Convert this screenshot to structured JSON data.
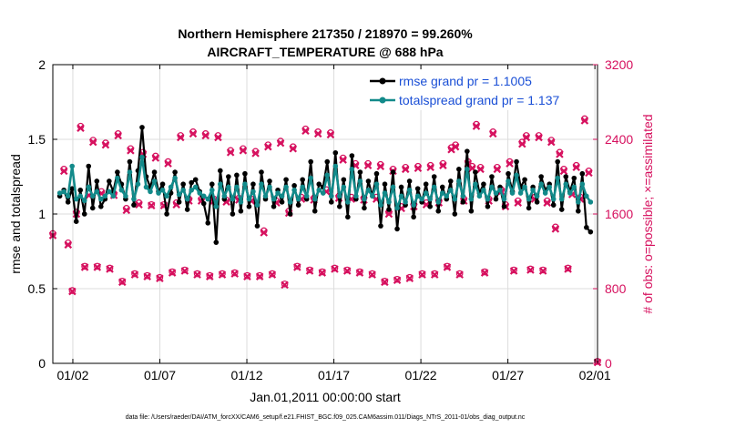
{
  "chart_data": {
    "type": "line",
    "title": "Northern Hemisphere 217350 / 218970 = 99.260%",
    "subtitle": "AIRCRAFT_TEMPERATURE @ 688 hPa",
    "xlabel": "Jan.01,2011 00:00:00 start",
    "ylabel_left": "rmse and totalspread",
    "ylabel_right": "# of obs: o=possible; ×=assimilated",
    "footer": "data file: /Users/raeder/DAI/ATM_forcXX/CAM6_setup/f.e21.FHIST_BGC.f09_025.CAM6assim.011/Diags_NTrS_2011-01/obs_diag_output.nc",
    "xlim": [
      0.6,
      31.9
    ],
    "ylim_left": [
      0,
      2
    ],
    "ylim_right": [
      0,
      3200
    ],
    "x_ticks": [
      1.75,
      6.75,
      11.75,
      16.75,
      21.75,
      26.75,
      31.75
    ],
    "x_tick_labels": [
      "01/02",
      "01/07",
      "01/12",
      "01/17",
      "01/22",
      "01/27",
      "02/01"
    ],
    "y_ticks_left": [
      0,
      0.5,
      1,
      1.5,
      2
    ],
    "y_tick_labels_left": [
      "0",
      "0.5",
      "1",
      "1.5",
      "2"
    ],
    "y_ticks_right": [
      0,
      800,
      1600,
      2400,
      3200
    ],
    "y_tick_labels_right": [
      "0",
      "800",
      "1600",
      "2400",
      "3200"
    ],
    "grid": true,
    "legend_position": "top-right",
    "colors": {
      "rmse": "#000000",
      "spread": "#128a8a",
      "obs": "#d6105e",
      "legend_text": "#1a4fd6"
    },
    "series": [
      {
        "name": "rmse grand pr = 1.1005",
        "axis": "left",
        "values": [
          1.12,
          1.16,
          1.08,
          1.17,
          0.95,
          1.16,
          1.0,
          1.32,
          1.04,
          1.22,
          1.05,
          1.1,
          1.22,
          1.15,
          1.28,
          1.2,
          1.1,
          1.35,
          1.06,
          1.29,
          1.58,
          1.25,
          1.18,
          1.28,
          1.15,
          1.2,
          1.0,
          1.14,
          1.28,
          1.08,
          1.2,
          1.03,
          1.21,
          1.23,
          1.15,
          1.07,
          0.94,
          1.2,
          0.81,
          1.29,
          1.1,
          1.25,
          1.0,
          1.26,
          1.02,
          1.27,
          1.05,
          1.2,
          0.92,
          1.28,
          1.1,
          1.22,
          1.05,
          1.16,
          1.08,
          1.23,
          1.0,
          1.19,
          1.06,
          1.23,
          1.1,
          1.35,
          1.02,
          1.2,
          1.18,
          1.35,
          1.08,
          1.41,
          1.05,
          1.23,
          0.98,
          1.39,
          1.1,
          1.28,
          1.04,
          1.22,
          1.12,
          1.27,
          0.92,
          1.2,
          1.03,
          1.28,
          0.9,
          1.18,
          1.06,
          1.22,
          0.98,
          1.17,
          1.08,
          1.2,
          1.05,
          1.25,
          1.02,
          1.18,
          1.1,
          1.22,
          1.0,
          1.3,
          1.08,
          1.42,
          1.02,
          1.28,
          1.14,
          1.2,
          1.05,
          1.25,
          1.1,
          1.18,
          1.05,
          1.27,
          1.15,
          1.35,
          1.18,
          1.23,
          1.04,
          1.18,
          1.08,
          1.25,
          1.16,
          1.2,
          1.06,
          1.35,
          1.03,
          1.25,
          1.15,
          1.24,
          1.02,
          1.27,
          0.91,
          0.88
        ]
      },
      {
        "name": "totalspread grand pr = 1.137",
        "axis": "left",
        "values": [
          1.14,
          1.15,
          1.12,
          1.32,
          1.1,
          1.12,
          1.09,
          1.18,
          1.12,
          1.15,
          1.1,
          1.12,
          1.15,
          1.12,
          1.24,
          1.16,
          1.12,
          1.28,
          1.1,
          1.2,
          1.38,
          1.18,
          1.15,
          1.22,
          1.14,
          1.16,
          1.12,
          1.18,
          1.24,
          1.13,
          1.16,
          1.1,
          1.16,
          1.18,
          1.14,
          1.12,
          1.1,
          1.16,
          1.05,
          1.2,
          1.12,
          1.18,
          1.1,
          1.18,
          1.08,
          1.2,
          1.1,
          1.15,
          1.06,
          1.2,
          1.12,
          1.18,
          1.1,
          1.14,
          1.12,
          1.18,
          1.08,
          1.16,
          1.1,
          1.18,
          1.12,
          1.24,
          1.1,
          1.16,
          1.14,
          1.26,
          1.12,
          1.32,
          1.12,
          1.18,
          1.08,
          1.3,
          1.12,
          1.22,
          1.1,
          1.16,
          1.12,
          1.2,
          1.06,
          1.14,
          1.08,
          1.18,
          1.04,
          1.12,
          1.08,
          1.16,
          1.06,
          1.12,
          1.1,
          1.14,
          1.1,
          1.18,
          1.08,
          1.14,
          1.12,
          1.16,
          1.1,
          1.22,
          1.12,
          1.3,
          1.1,
          1.2,
          1.12,
          1.16,
          1.1,
          1.18,
          1.14,
          1.16,
          1.1,
          1.22,
          1.14,
          1.26,
          1.14,
          1.18,
          1.1,
          1.16,
          1.12,
          1.2,
          1.14,
          1.18,
          1.1,
          1.24,
          1.1,
          1.2,
          1.14,
          1.18,
          1.08,
          1.2,
          1.12,
          1.08
        ]
      },
      {
        "name": "obs possible",
        "axis": "right",
        "values": [
          1390,
          2080,
          1290,
          780,
          1620,
          2540,
          1040,
          1820,
          2390,
          1040,
          1840,
          2360,
          1020,
          1820,
          2460,
          880,
          1660,
          2300,
          960,
          1720,
          2260,
          940,
          1700,
          2220,
          920,
          1700,
          2160,
          980,
          1720,
          2440,
          1000,
          1760,
          2480,
          960,
          1760,
          2460,
          940,
          1760,
          2440,
          960,
          1750,
          2280,
          970,
          1770,
          2300,
          940,
          1760,
          2270,
          940,
          1420,
          2340,
          960,
          1740,
          2380,
          850,
          1630,
          2320,
          1040,
          1780,
          2510,
          1000,
          1770,
          2480,
          980,
          1860,
          2470,
          1020,
          1790,
          2200,
          1000,
          1780,
          2140,
          980,
          1770,
          2140,
          960,
          1780,
          2130,
          880,
          1620,
          2080,
          900,
          1680,
          2100,
          920,
          1700,
          2110,
          960,
          1720,
          2120,
          960,
          1740,
          2140,
          1040,
          2310,
          2340,
          960,
          1760,
          2160,
          2110,
          2560,
          2100,
          980,
          1760,
          2480,
          2100,
          1860,
          1700,
          2160,
          1000,
          1740,
          2370,
          2440,
          1010,
          1780,
          2440,
          1000,
          1740,
          2390,
          1460,
          2260,
          2080,
          1020,
          1830,
          2120,
          1780,
          2620,
          2060,
          20
        ]
      },
      {
        "name": "obs assimilated",
        "axis": "right",
        "values": [
          1370,
          2060,
          1270,
          770,
          1600,
          2520,
          1030,
          1800,
          2370,
          1030,
          1820,
          2340,
          1010,
          1800,
          2440,
          870,
          1640,
          2280,
          950,
          1700,
          2240,
          930,
          1690,
          2200,
          910,
          1690,
          2140,
          970,
          1700,
          2420,
          990,
          1740,
          2460,
          950,
          1740,
          2440,
          930,
          1740,
          2420,
          950,
          1730,
          2260,
          960,
          1750,
          2280,
          930,
          1740,
          2250,
          930,
          1400,
          2320,
          950,
          1720,
          2360,
          840,
          1610,
          2300,
          1030,
          1760,
          2490,
          990,
          1750,
          2460,
          970,
          1840,
          2450,
          1010,
          1770,
          2180,
          990,
          1760,
          2120,
          970,
          1750,
          2120,
          950,
          1760,
          2110,
          870,
          1600,
          2060,
          890,
          1660,
          2080,
          910,
          1680,
          2090,
          950,
          1700,
          2100,
          950,
          1720,
          2120,
          1030,
          2290,
          2320,
          950,
          1740,
          2140,
          2090,
          2540,
          2080,
          970,
          1740,
          2460,
          2080,
          1840,
          1680,
          2140,
          990,
          1720,
          2350,
          2420,
          1000,
          1760,
          2420,
          990,
          1720,
          2370,
          1440,
          2240,
          2060,
          1010,
          1810,
          2100,
          1760,
          2600,
          2040,
          10
        ]
      }
    ]
  }
}
